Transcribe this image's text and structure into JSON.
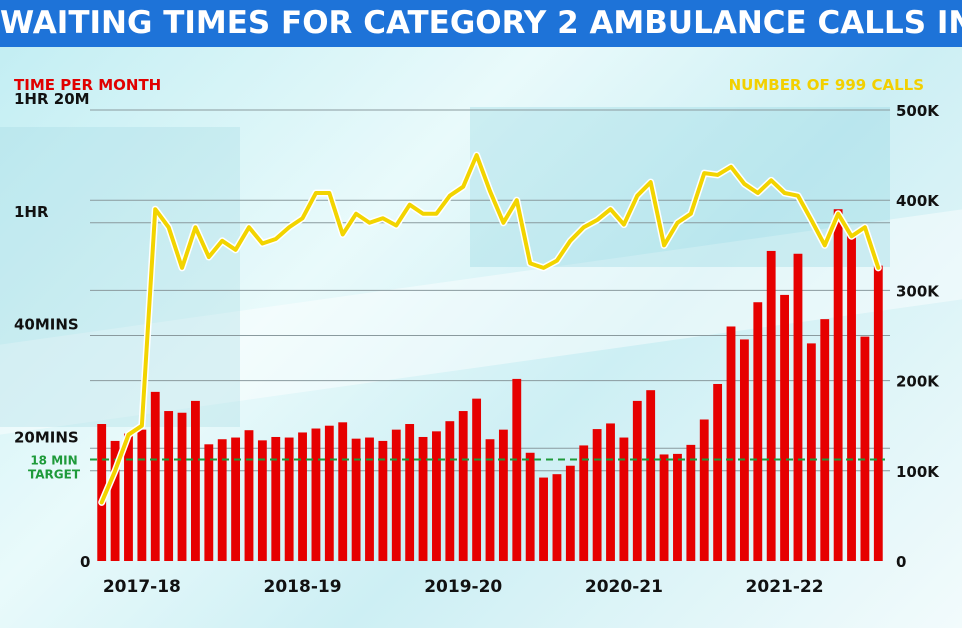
{
  "header": {
    "title": "WAITING TIMES FOR CATEGORY 2 AMBULANCE CALLS IN ENGLAND"
  },
  "colors": {
    "bars": "#e60000",
    "line": "#f2d400",
    "title_bg": "#1e73d8",
    "target": "#1e9a3a"
  },
  "chart_data": {
    "type": "bar",
    "title": "WAITING TIMES FOR CATEGORY 2 AMBULANCE CALLS IN ENGLAND",
    "left_axis_title": "TIME PER MONTH",
    "right_axis_title": "NUMBER OF 999 CALLS",
    "left_ticks": [
      {
        "value": 0,
        "label": "0"
      },
      {
        "value": 20,
        "label": "20MINS"
      },
      {
        "value": 40,
        "label": "40MINS"
      },
      {
        "value": 60,
        "label": "1HR"
      },
      {
        "value": 80,
        "label": "1HR 20M"
      }
    ],
    "right_ticks": [
      {
        "value": 0,
        "label": "0"
      },
      {
        "value": 100000,
        "label": "100K"
      },
      {
        "value": 200000,
        "label": "200K"
      },
      {
        "value": 300000,
        "label": "300K"
      },
      {
        "value": 400000,
        "label": "400K"
      },
      {
        "value": 500000,
        "label": "500K"
      }
    ],
    "ylim_left": [
      0,
      80
    ],
    "ylim_right": [
      0,
      500000
    ],
    "x_labels": [
      {
        "index": 3,
        "label": "2017-18"
      },
      {
        "index": 15,
        "label": "2018-19"
      },
      {
        "index": 27,
        "label": "2019-20"
      },
      {
        "index": 39,
        "label": "2020-21"
      },
      {
        "index": 51,
        "label": "2021-22"
      }
    ],
    "target": {
      "value": 18,
      "label_line1": "18 MIN",
      "label_line2": "TARGET"
    },
    "series": [
      {
        "name": "TIME PER MONTH",
        "kind": "bar",
        "values": [
          24.3,
          21.3,
          22.6,
          23.3,
          30.0,
          26.6,
          26.3,
          28.4,
          20.7,
          21.6,
          21.9,
          23.2,
          21.4,
          22.0,
          21.9,
          22.8,
          23.5,
          24.0,
          24.6,
          21.7,
          21.9,
          21.3,
          23.3,
          24.3,
          22.0,
          23.0,
          24.8,
          26.6,
          28.8,
          21.6,
          23.3,
          32.3,
          19.2,
          14.8,
          15.4,
          16.9,
          20.5,
          23.4,
          24.4,
          21.9,
          28.4,
          30.3,
          18.9,
          19.0,
          20.6,
          25.1,
          31.4,
          41.6,
          39.3,
          45.9,
          55.0,
          47.2,
          54.5,
          38.6,
          42.9,
          62.4,
          58.1,
          39.8,
          52.4
        ]
      },
      {
        "name": "NUMBER OF 999 CALLS",
        "kind": "line",
        "values": [
          65000,
          100000,
          140000,
          150000,
          390000,
          370000,
          325000,
          370000,
          337000,
          355000,
          345000,
          370000,
          352000,
          357000,
          370000,
          380000,
          408000,
          408000,
          362000,
          385000,
          375000,
          380000,
          372000,
          395000,
          385000,
          385000,
          405000,
          415000,
          450000,
          410000,
          375000,
          400000,
          330000,
          325000,
          333000,
          355000,
          370000,
          378000,
          390000,
          373000,
          405000,
          420000,
          350000,
          375000,
          385000,
          430000,
          428000,
          437000,
          418000,
          408000,
          422000,
          408000,
          405000,
          378000,
          350000,
          385000,
          360000,
          370000,
          325000
        ]
      }
    ]
  }
}
